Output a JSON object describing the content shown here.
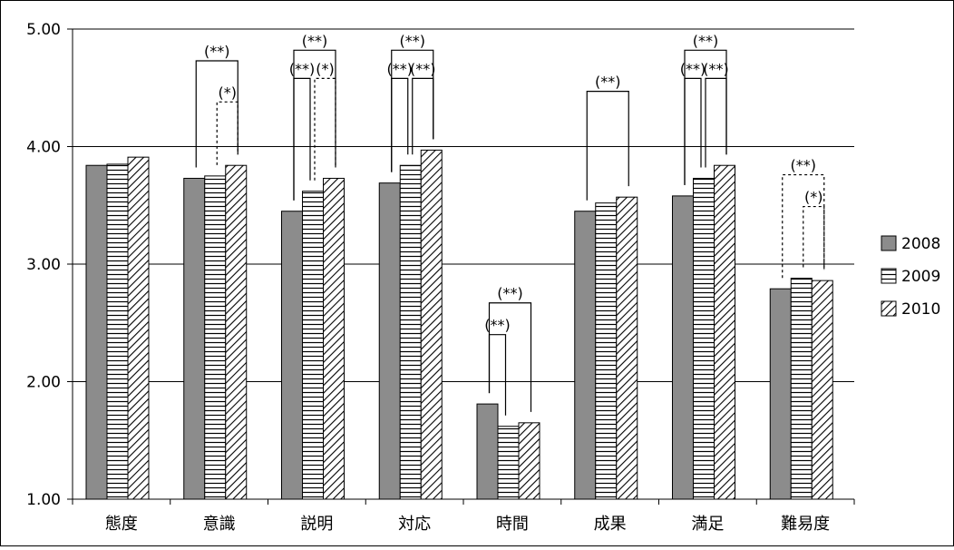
{
  "chart_data": {
    "type": "bar",
    "title": "",
    "xlabel": "",
    "ylabel": "",
    "ylim": [
      1.0,
      5.0
    ],
    "yticks": [
      "1.00",
      "2.00",
      "3.00",
      "4.00",
      "5.00"
    ],
    "grid": true,
    "legend_position": "right",
    "categories": [
      "態度",
      "意識",
      "説明",
      "対応",
      "時間",
      "成果",
      "満足",
      "難易度"
    ],
    "series": [
      {
        "name": "2008",
        "fill": "solid-gray",
        "color": "#8c8c8c",
        "values": [
          3.84,
          3.73,
          3.45,
          3.69,
          1.81,
          3.45,
          3.58,
          2.79
        ]
      },
      {
        "name": "2009",
        "fill": "horizontal-lines",
        "color": "#ffffff",
        "values": [
          3.85,
          3.75,
          3.62,
          3.84,
          1.62,
          3.52,
          3.73,
          2.88
        ]
      },
      {
        "name": "2010",
        "fill": "diagonal-lines",
        "color": "#ffffff",
        "values": [
          3.91,
          3.84,
          3.73,
          3.97,
          1.65,
          3.57,
          3.84,
          2.86
        ]
      }
    ],
    "significance": [
      {
        "category": "意識",
        "from": 0,
        "to": 2,
        "label": "(**)",
        "top": 4.73,
        "style": "solid"
      },
      {
        "category": "意識",
        "from": 1,
        "to": 2,
        "label": "(*)",
        "top": 4.38,
        "style": "dashed"
      },
      {
        "category": "説明",
        "from": 0,
        "to": 2,
        "label": "(**)",
        "top": 4.82,
        "style": "solid"
      },
      {
        "category": "説明",
        "from": 0,
        "to": 1,
        "label": "(**)",
        "top": 4.58,
        "style": "solid"
      },
      {
        "category": "説明",
        "from": 1,
        "to": 2,
        "label": "(*)",
        "top": 4.58,
        "style": "dashed"
      },
      {
        "category": "対応",
        "from": 0,
        "to": 2,
        "label": "(**)",
        "top": 4.82,
        "style": "solid"
      },
      {
        "category": "対応",
        "from": 0,
        "to": 1,
        "label": "(**)",
        "top": 4.58,
        "style": "solid"
      },
      {
        "category": "対応",
        "from": 1,
        "to": 2,
        "label": "(**)",
        "top": 4.58,
        "style": "solid"
      },
      {
        "category": "時間",
        "from": 0,
        "to": 2,
        "label": "(**)",
        "top": 2.67,
        "style": "solid"
      },
      {
        "category": "時間",
        "from": 0,
        "to": 1,
        "label": "(**)",
        "top": 2.4,
        "style": "solid"
      },
      {
        "category": "成果",
        "from": 0,
        "to": 2,
        "label": "(**)",
        "top": 4.47,
        "style": "solid"
      },
      {
        "category": "満足",
        "from": 0,
        "to": 2,
        "label": "(**)",
        "top": 4.82,
        "style": "solid"
      },
      {
        "category": "満足",
        "from": 0,
        "to": 1,
        "label": "(**)",
        "top": 4.58,
        "style": "solid"
      },
      {
        "category": "満足",
        "from": 1,
        "to": 2,
        "label": "(**)",
        "top": 4.58,
        "style": "solid"
      },
      {
        "category": "難易度",
        "from": 0,
        "to": 2,
        "label": "(**)",
        "top": 3.76,
        "style": "dashed"
      },
      {
        "category": "難易度",
        "from": 1,
        "to": 2,
        "label": "(*)",
        "top": 3.49,
        "style": "dashed"
      }
    ]
  }
}
